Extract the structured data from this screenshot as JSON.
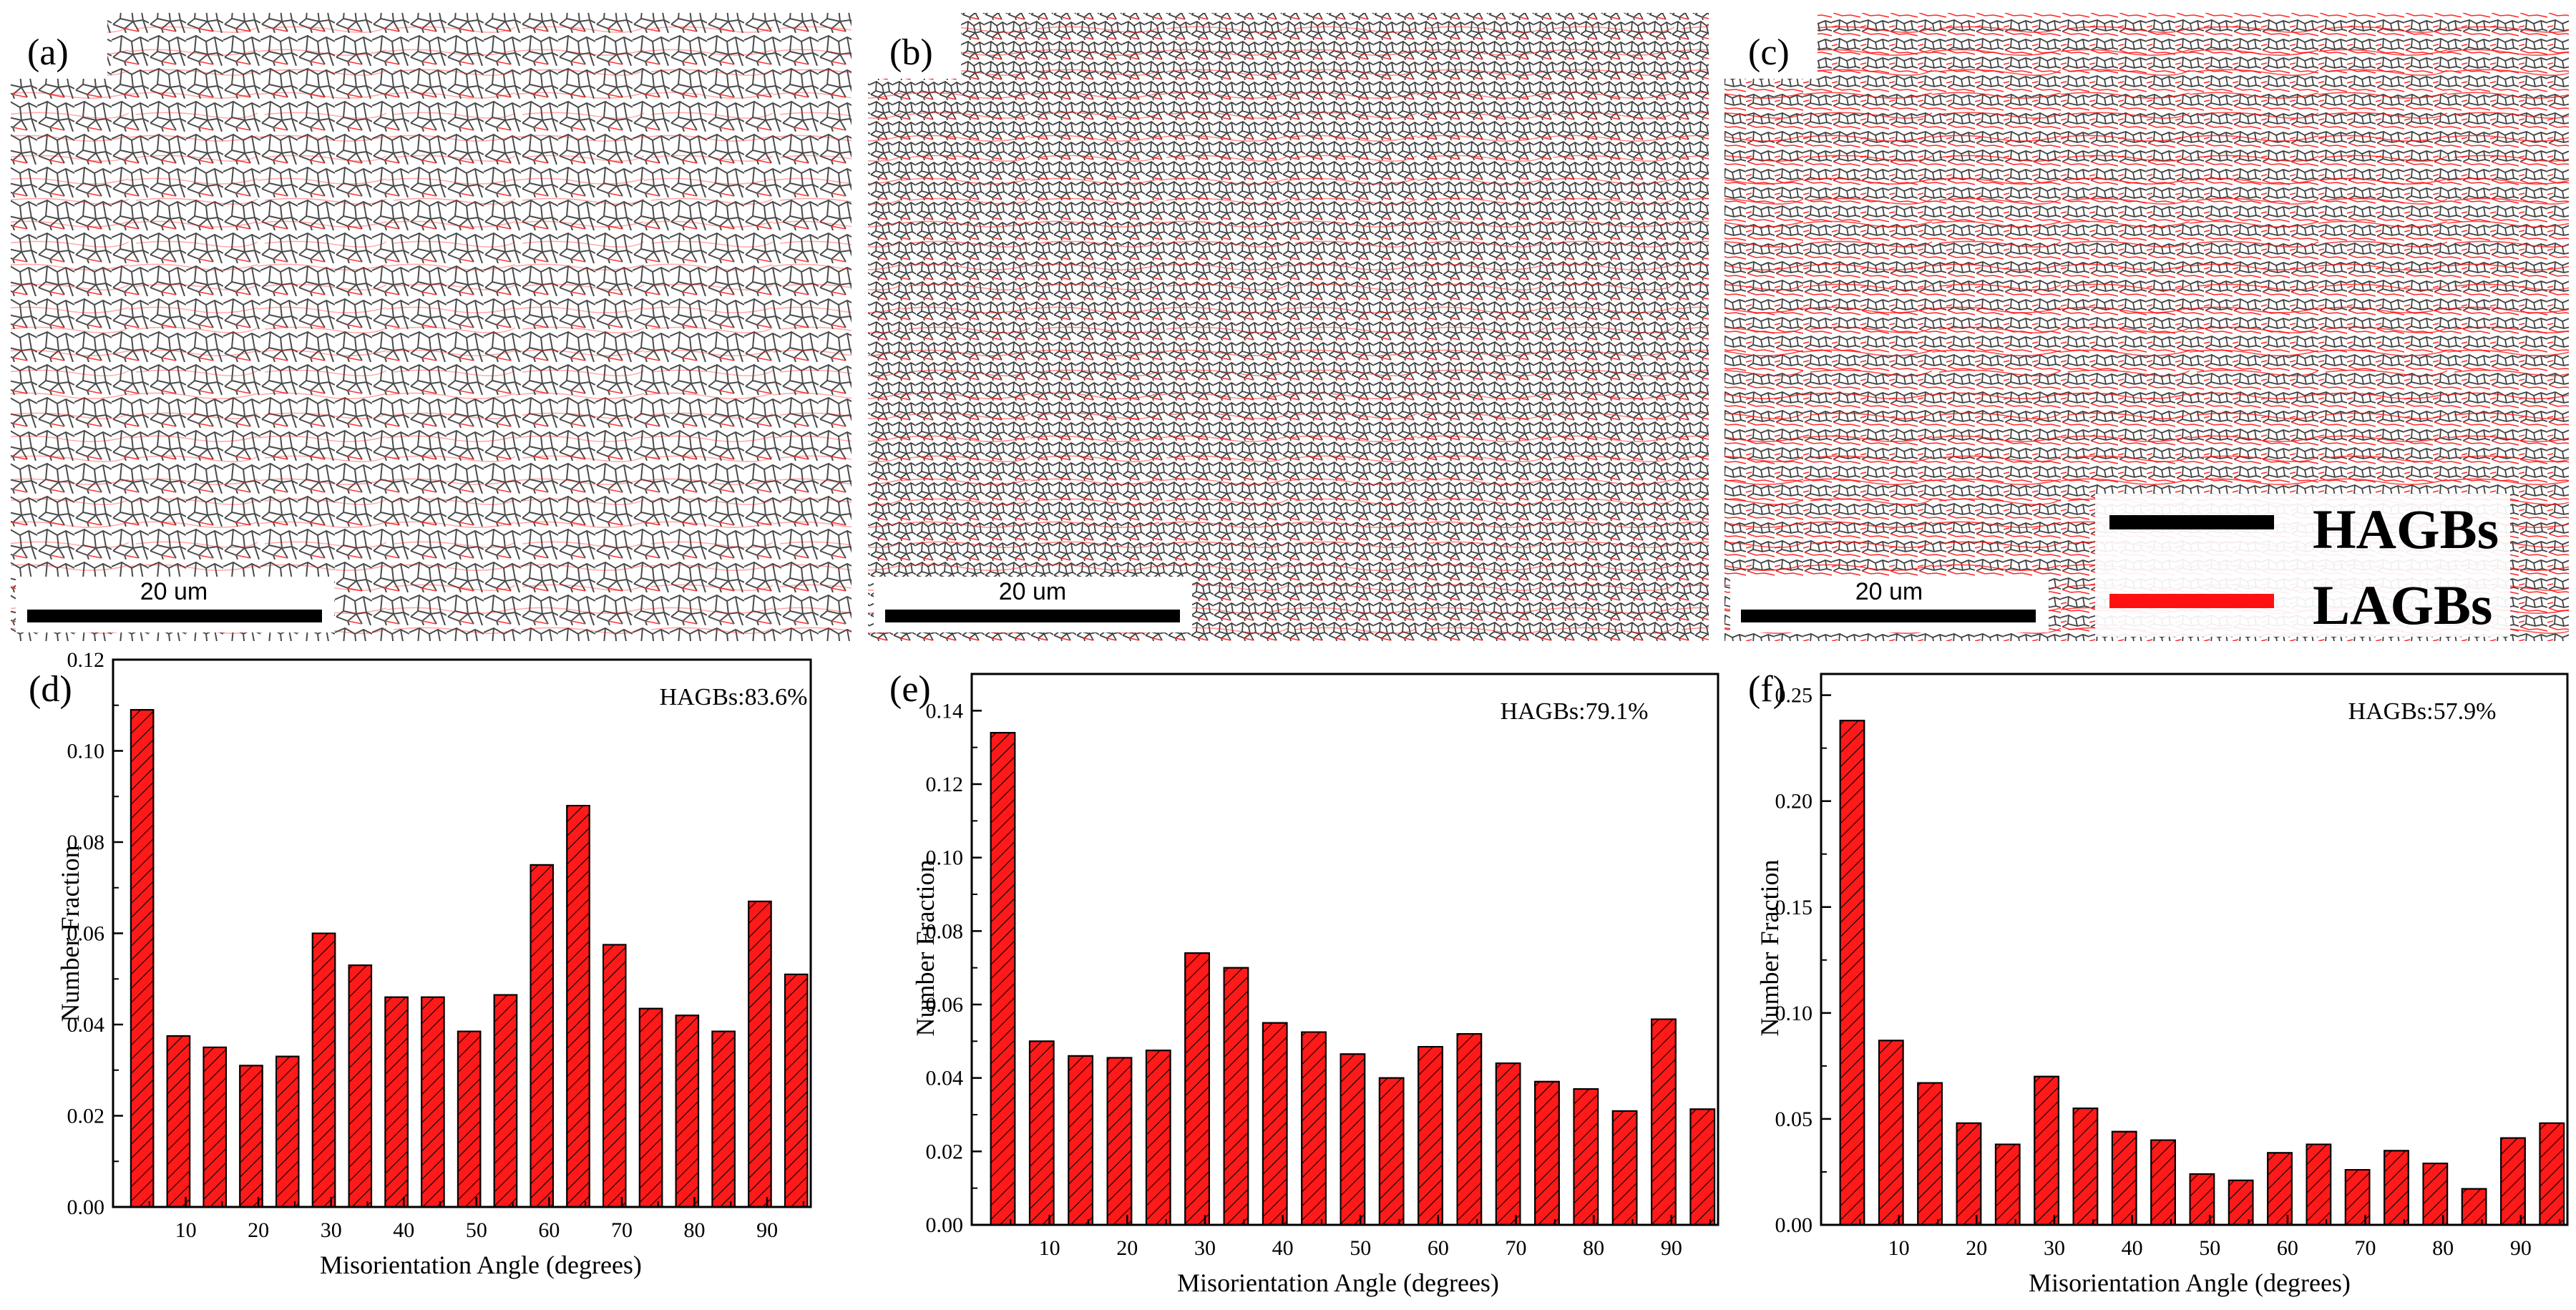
{
  "maps": [
    {
      "label": "(a)",
      "scale_bar": "20 um"
    },
    {
      "label": "(b)",
      "scale_bar": "20 um"
    },
    {
      "label": "(c)",
      "scale_bar": "20 um"
    }
  ],
  "legend": [
    {
      "label": "HAGBs",
      "color": "#000000"
    },
    {
      "label": "LAGBs",
      "color": "#ff1010"
    }
  ],
  "colors": {
    "bar_fill": "#ff1a1a",
    "hatch": "#000000",
    "lagb": "#ff1010",
    "hagb": "#2a2a2a"
  },
  "chart_data": [
    {
      "type": "bar",
      "label": "(d)",
      "annotation": "HAGBs:83.6%",
      "xlabel": "Misorientation Angle (degrees)",
      "ylabel": "Number Fraction",
      "xlim": [
        0,
        96
      ],
      "xticks": [
        "10",
        "20",
        "30",
        "40",
        "50",
        "60",
        "70",
        "80",
        "90"
      ],
      "xtick_values": [
        10,
        20,
        30,
        40,
        50,
        60,
        70,
        80,
        90
      ],
      "ylim": [
        0,
        0.12
      ],
      "yticks": [
        "0.00",
        "0.02",
        "0.04",
        "0.06",
        "0.08",
        "0.10",
        "0.12"
      ],
      "ytick_values": [
        0,
        0.02,
        0.04,
        0.06,
        0.08,
        0.1,
        0.12
      ],
      "x": [
        4,
        9,
        14,
        19,
        24,
        29,
        34,
        39,
        44,
        49,
        54,
        59,
        64,
        69,
        74,
        79,
        84,
        89,
        94
      ],
      "values": [
        0.109,
        0.0375,
        0.035,
        0.031,
        0.033,
        0.06,
        0.053,
        0.046,
        0.046,
        0.0385,
        0.0465,
        0.075,
        0.088,
        0.0575,
        0.0435,
        0.042,
        0.0385,
        0.067,
        0.051
      ]
    },
    {
      "type": "bar",
      "label": "(e)",
      "annotation": "HAGBs:79.1%",
      "xlabel": "Misorientation Angle (degrees)",
      "ylabel": "Number Fraction",
      "xlim": [
        0,
        96
      ],
      "xticks": [
        "10",
        "20",
        "30",
        "40",
        "50",
        "60",
        "70",
        "80",
        "90"
      ],
      "xtick_values": [
        10,
        20,
        30,
        40,
        50,
        60,
        70,
        80,
        90
      ],
      "ylim": [
        0,
        0.15
      ],
      "yticks": [
        "0.00",
        "0.02",
        "0.04",
        "0.06",
        "0.08",
        "0.10",
        "0.12",
        "0.14"
      ],
      "ytick_values": [
        0,
        0.02,
        0.04,
        0.06,
        0.08,
        0.1,
        0.12,
        0.14
      ],
      "x": [
        4,
        9,
        14,
        19,
        24,
        29,
        34,
        39,
        44,
        49,
        54,
        59,
        64,
        69,
        74,
        79,
        84,
        89,
        94
      ],
      "values": [
        0.134,
        0.05,
        0.046,
        0.0455,
        0.0475,
        0.074,
        0.07,
        0.055,
        0.0525,
        0.0465,
        0.04,
        0.0485,
        0.052,
        0.044,
        0.039,
        0.037,
        0.031,
        0.056,
        0.0315
      ]
    },
    {
      "type": "bar",
      "label": "(f)",
      "annotation": "HAGBs:57.9%",
      "xlabel": "Misorientation Angle (degrees)",
      "ylabel": "Number Fraction",
      "xlim": [
        0,
        96
      ],
      "xticks": [
        "10",
        "20",
        "30",
        "40",
        "50",
        "60",
        "70",
        "80",
        "90"
      ],
      "xtick_values": [
        10,
        20,
        30,
        40,
        50,
        60,
        70,
        80,
        90
      ],
      "ylim": [
        0,
        0.26
      ],
      "yticks": [
        "0.00",
        "0.05",
        "0.10",
        "0.15",
        "0.20",
        "0.25"
      ],
      "ytick_values": [
        0,
        0.05,
        0.1,
        0.15,
        0.2,
        0.25
      ],
      "x": [
        4,
        9,
        14,
        19,
        24,
        29,
        34,
        39,
        44,
        49,
        54,
        59,
        64,
        69,
        74,
        79,
        84,
        89,
        94
      ],
      "values": [
        0.238,
        0.087,
        0.067,
        0.048,
        0.038,
        0.07,
        0.055,
        0.044,
        0.04,
        0.024,
        0.021,
        0.034,
        0.038,
        0.026,
        0.035,
        0.029,
        0.017,
        0.041,
        0.048
      ]
    }
  ]
}
